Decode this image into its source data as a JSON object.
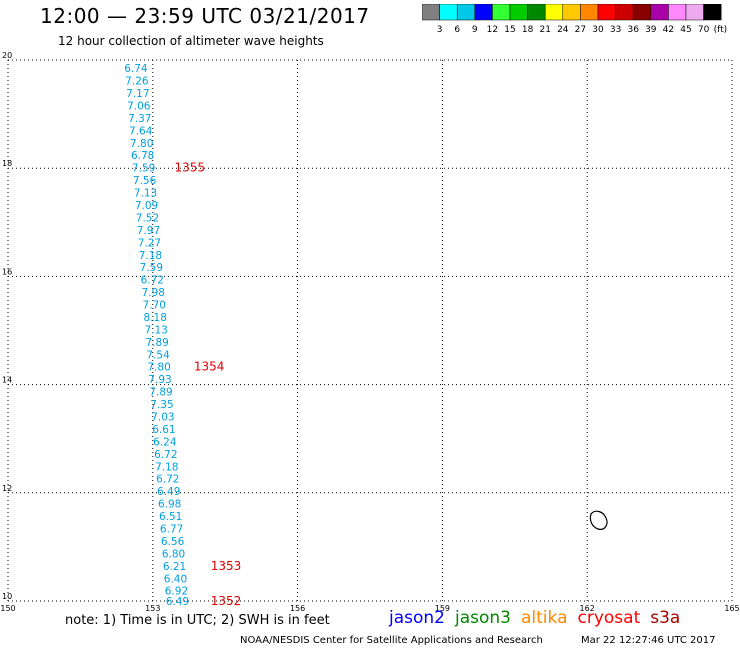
{
  "header": {
    "title": "12:00 — 23:59 UTC 03/21/2017",
    "subtitle": "12 hour collection of altimeter wave heights"
  },
  "colorbar": {
    "labels": [
      "3",
      "6",
      "9",
      "12",
      "15",
      "18",
      "21",
      "24",
      "27",
      "30",
      "33",
      "36",
      "39",
      "42",
      "45",
      "70"
    ],
    "unit": "(ft)",
    "colors": [
      "#808080",
      "#00ffff",
      "#00c8e6",
      "#0000ff",
      "#33ff33",
      "#00cc00",
      "#008800",
      "#ffff00",
      "#ffc800",
      "#ff8800",
      "#ff0000",
      "#cc0000",
      "#880000",
      "#aa00aa",
      "#ff88ff",
      "#eeaaee",
      "#000000"
    ]
  },
  "axes": {
    "x_ticks": [
      "150",
      "153",
      "156",
      "159",
      "162",
      "165"
    ],
    "y_ticks": [
      "20",
      "18",
      "16",
      "14",
      "12",
      "10"
    ],
    "x_range": [
      150,
      165
    ],
    "y_range": [
      10,
      20
    ]
  },
  "readings": [
    {
      "v": "6.74",
      "lon": 152.65,
      "lat": 19.85
    },
    {
      "v": "7.26",
      "lon": 152.67,
      "lat": 19.62
    },
    {
      "v": "7.17",
      "lon": 152.69,
      "lat": 19.39
    },
    {
      "v": "7.06",
      "lon": 152.71,
      "lat": 19.16
    },
    {
      "v": "7.37",
      "lon": 152.73,
      "lat": 18.93
    },
    {
      "v": "7.64",
      "lon": 152.75,
      "lat": 18.7
    },
    {
      "v": "7.80",
      "lon": 152.77,
      "lat": 18.47
    },
    {
      "v": "6.78",
      "lon": 152.79,
      "lat": 18.24
    },
    {
      "v": "7.59",
      "lon": 152.81,
      "lat": 18.01
    },
    {
      "v": "7.56",
      "lon": 152.83,
      "lat": 17.78
    },
    {
      "v": "7.13",
      "lon": 152.85,
      "lat": 17.55
    },
    {
      "v": "7.09",
      "lon": 152.87,
      "lat": 17.32
    },
    {
      "v": "7.52",
      "lon": 152.89,
      "lat": 17.09
    },
    {
      "v": "7.97",
      "lon": 152.91,
      "lat": 16.86
    },
    {
      "v": "7.27",
      "lon": 152.93,
      "lat": 16.63
    },
    {
      "v": "7.18",
      "lon": 152.95,
      "lat": 16.4
    },
    {
      "v": "7.59",
      "lon": 152.97,
      "lat": 16.17
    },
    {
      "v": "6.72",
      "lon": 152.99,
      "lat": 15.94
    },
    {
      "v": "7.98",
      "lon": 153.01,
      "lat": 15.71
    },
    {
      "v": "7.70",
      "lon": 153.03,
      "lat": 15.48
    },
    {
      "v": "8.18",
      "lon": 153.05,
      "lat": 15.25
    },
    {
      "v": "7.13",
      "lon": 153.07,
      "lat": 15.02
    },
    {
      "v": "7.89",
      "lon": 153.09,
      "lat": 14.79
    },
    {
      "v": "7.54",
      "lon": 153.11,
      "lat": 14.56
    },
    {
      "v": "7.80",
      "lon": 153.13,
      "lat": 14.33
    },
    {
      "v": "7.93",
      "lon": 153.15,
      "lat": 14.1
    },
    {
      "v": "7.89",
      "lon": 153.17,
      "lat": 13.87
    },
    {
      "v": "7.35",
      "lon": 153.19,
      "lat": 13.64
    },
    {
      "v": "7.03",
      "lon": 153.21,
      "lat": 13.41
    },
    {
      "v": "6.61",
      "lon": 153.23,
      "lat": 13.18
    },
    {
      "v": "6.24",
      "lon": 153.25,
      "lat": 12.95
    },
    {
      "v": "6.72",
      "lon": 153.27,
      "lat": 12.72
    },
    {
      "v": "7.18",
      "lon": 153.29,
      "lat": 12.49
    },
    {
      "v": "6.72",
      "lon": 153.31,
      "lat": 12.26
    },
    {
      "v": "6.49",
      "lon": 153.33,
      "lat": 12.03
    },
    {
      "v": "6.98",
      "lon": 153.35,
      "lat": 11.8
    },
    {
      "v": "6.51",
      "lon": 153.37,
      "lat": 11.57
    },
    {
      "v": "6.77",
      "lon": 153.39,
      "lat": 11.34
    },
    {
      "v": "6.56",
      "lon": 153.41,
      "lat": 11.11
    },
    {
      "v": "6.80",
      "lon": 153.43,
      "lat": 10.88
    },
    {
      "v": "6.21",
      "lon": 153.45,
      "lat": 10.65
    },
    {
      "v": "6.40",
      "lon": 153.47,
      "lat": 10.42
    },
    {
      "v": "6.92",
      "lon": 153.49,
      "lat": 10.19
    },
    {
      "v": "6.49",
      "lon": 153.51,
      "lat": 10.0
    }
  ],
  "pass_labels": [
    {
      "text": "1355",
      "lon": 153.45,
      "lat": 18.01
    },
    {
      "text": "1354",
      "lon": 153.85,
      "lat": 14.33
    },
    {
      "text": "1353",
      "lon": 154.2,
      "lat": 10.65
    },
    {
      "text": "1352",
      "lon": 154.2,
      "lat": 10.0
    }
  ],
  "footer": {
    "note": "note: 1) Time is in UTC; 2) SWH is in feet",
    "satellites": [
      {
        "name": "jason2",
        "color": "#0000ff"
      },
      {
        "name": "jason3",
        "color": "#008800"
      },
      {
        "name": "altika",
        "color": "#ff8800"
      },
      {
        "name": "cryosat",
        "color": "#ff0000"
      },
      {
        "name": "s3a",
        "color": "#aa0000"
      }
    ],
    "credit": "NOAA/NESDIS Center for Satellite Applications and Research",
    "timestamp": "Mar 22 12:27:46 UTC 2017"
  },
  "colors": {
    "reading": "#00a0e0",
    "pass": "#e00000"
  }
}
